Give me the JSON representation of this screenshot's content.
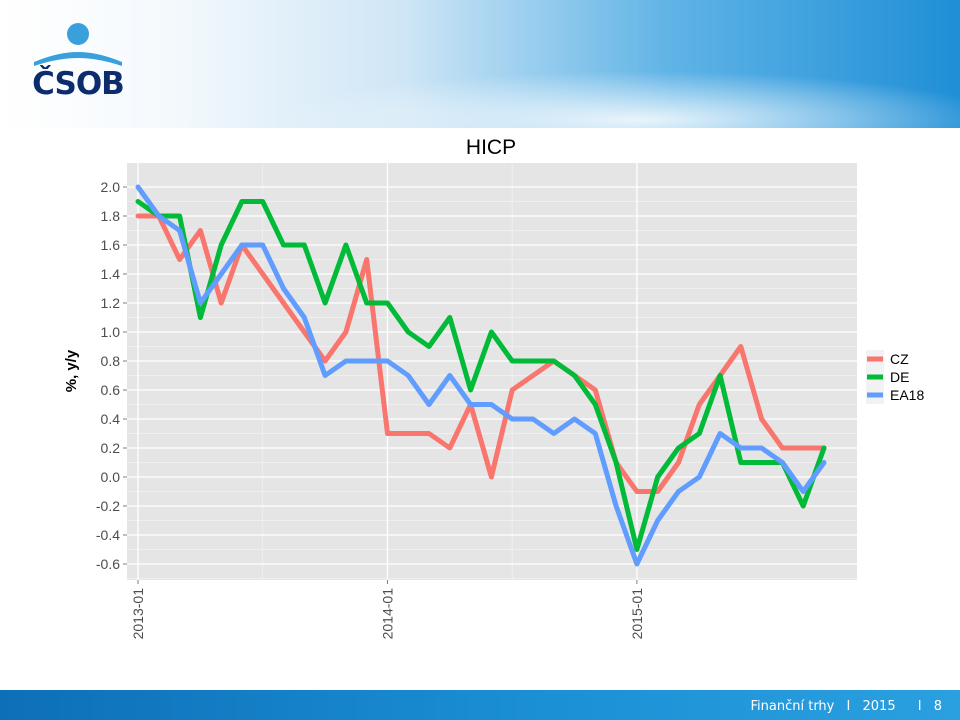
{
  "branding": {
    "logo_text": "ČSOB"
  },
  "footer": {
    "label": "Finanční trhy",
    "separator": "I",
    "year": "2015",
    "page_number": "8"
  },
  "chart_data": {
    "type": "line",
    "title": "HICP",
    "xlabel": "",
    "ylabel": "%, y/y",
    "ylim": [
      -0.7,
      2.1
    ],
    "yticks": [
      "2.0",
      "1.8",
      "1.6",
      "1.4",
      "1.2",
      "1.0",
      "0.8",
      "0.6",
      "0.4",
      "0.2",
      "0.0",
      "-0.2",
      "-0.4",
      "-0.6"
    ],
    "xticks": [
      "2013-01",
      "2014-01",
      "2015-01"
    ],
    "x": [
      "2013-01",
      "2013-02",
      "2013-03",
      "2013-04",
      "2013-05",
      "2013-06",
      "2013-07",
      "2013-08",
      "2013-09",
      "2013-10",
      "2013-11",
      "2013-12",
      "2014-01",
      "2014-02",
      "2014-03",
      "2014-04",
      "2014-05",
      "2014-06",
      "2014-07",
      "2014-08",
      "2014-09",
      "2014-10",
      "2014-11",
      "2014-12",
      "2015-01",
      "2015-02",
      "2015-03",
      "2015-04",
      "2015-05",
      "2015-06",
      "2015-07",
      "2015-08",
      "2015-09",
      "2015-10"
    ],
    "grid": true,
    "legend_position": "right",
    "series": [
      {
        "name": "CZ",
        "color": "#F8766D",
        "values": [
          1.8,
          1.8,
          1.5,
          1.7,
          1.2,
          1.6,
          1.4,
          1.2,
          1.0,
          0.8,
          1.0,
          1.5,
          0.3,
          0.3,
          0.3,
          0.2,
          0.5,
          0.0,
          0.6,
          0.7,
          0.8,
          0.7,
          0.6,
          0.1,
          -0.1,
          -0.1,
          0.1,
          0.5,
          0.7,
          0.9,
          0.4,
          0.2,
          0.2,
          0.2
        ]
      },
      {
        "name": "DE",
        "color": "#00BA38",
        "values": [
          1.9,
          1.8,
          1.8,
          1.1,
          1.6,
          1.9,
          1.9,
          1.6,
          1.6,
          1.2,
          1.6,
          1.2,
          1.2,
          1.0,
          0.9,
          1.1,
          0.6,
          1.0,
          0.8,
          0.8,
          0.8,
          0.7,
          0.5,
          0.1,
          -0.5,
          0.0,
          0.2,
          0.3,
          0.7,
          0.1,
          0.1,
          0.1,
          -0.2,
          0.2
        ]
      },
      {
        "name": "EA18",
        "color": "#619CFF",
        "values": [
          2.0,
          1.8,
          1.7,
          1.2,
          1.4,
          1.6,
          1.6,
          1.3,
          1.1,
          0.7,
          0.8,
          0.8,
          0.8,
          0.7,
          0.5,
          0.7,
          0.5,
          0.5,
          0.4,
          0.4,
          0.3,
          0.4,
          0.3,
          -0.2,
          -0.6,
          -0.3,
          -0.1,
          0.0,
          0.3,
          0.2,
          0.2,
          0.1,
          -0.1,
          0.1
        ]
      }
    ]
  }
}
